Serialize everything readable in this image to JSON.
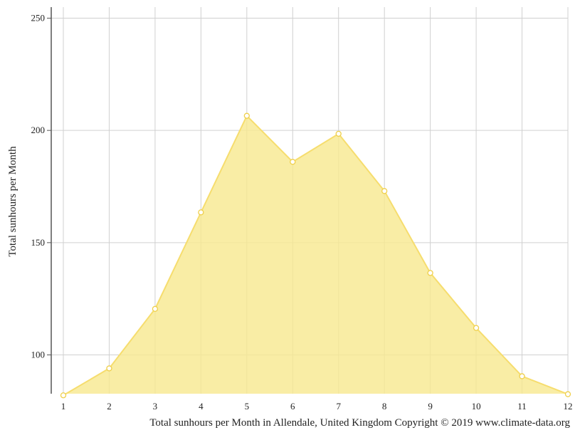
{
  "chart_data": {
    "type": "area",
    "title": "",
    "x": [
      1,
      2,
      3,
      4,
      5,
      6,
      7,
      8,
      9,
      10,
      11,
      12
    ],
    "series": [
      {
        "values": [
          82,
          94,
          120.5,
          163.5,
          206.5,
          186,
          198.5,
          173,
          136.5,
          112,
          90.5,
          82.5
        ]
      }
    ],
    "xlabel": "Total sunhours per Month in Allendale, United Kingdom Copyright © 2019 www.climate-data.org",
    "ylabel": "Total sunhours per Month",
    "xlim": [
      1,
      12
    ],
    "ylim": [
      82,
      255
    ],
    "y_ticks": [
      100,
      150,
      200,
      250
    ],
    "grid": true,
    "colors": {
      "area_fill": "#f8e88f",
      "line": "#f6dd6e",
      "marker_stroke": "#efcf4a",
      "marker_fill": "#ffffff",
      "grid": "#d0d0d0",
      "axis": "#555555"
    }
  }
}
